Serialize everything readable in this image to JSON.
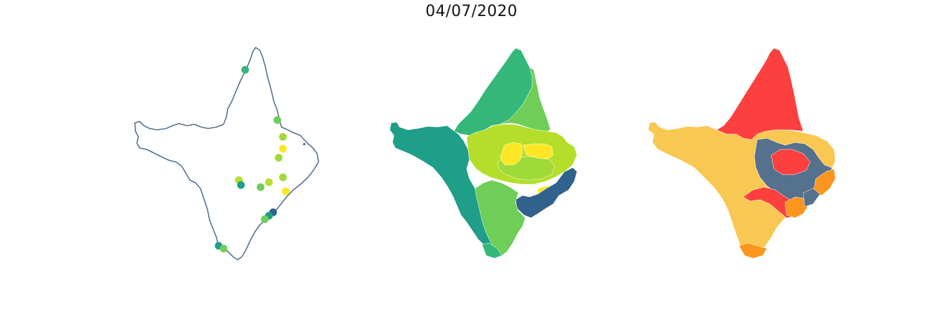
{
  "figure": {
    "title": "04/07/2020"
  },
  "colors": {
    "outline": "#56718e",
    "viridis_blue": "#31628d",
    "viridis_teal": "#1f9e89",
    "viridis_green": "#35b779",
    "viridis_lightgreen": "#6ece58",
    "viridis_yellowgreen": "#b5de2b",
    "viridis_yellow": "#fde725",
    "cat_red": "#fc4040",
    "cat_yellow": "#f8c852",
    "cat_orange": "#fa961e",
    "cat_slate": "#56718e"
  },
  "panels": {
    "points": {
      "kind": "station-points",
      "station_colors": [
        "#35b779",
        "#6ece58",
        "#a0da39",
        "#fde725",
        "#a0da39",
        "#b5de2b",
        "#1f9e89",
        "#6ece58",
        "#b5de2b",
        "#a0da39",
        "#fde725",
        "#31628d",
        "#1f9e89",
        "#6ece58",
        "#1f9e89",
        "#6ece58"
      ]
    },
    "continuous": {
      "kind": "choropleth-continuous"
    },
    "categorical": {
      "kind": "choropleth-categorical"
    }
  }
}
